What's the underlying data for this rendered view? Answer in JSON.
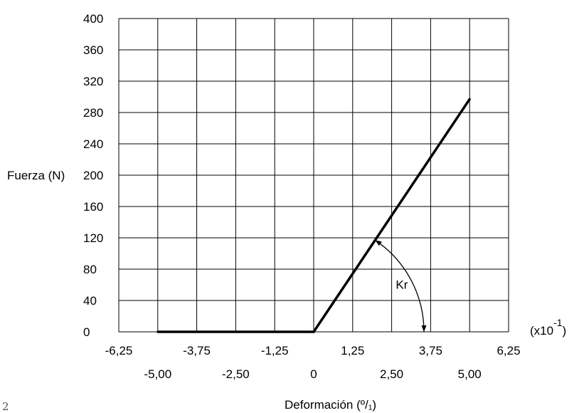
{
  "page_number": "2",
  "chart_data": {
    "type": "line",
    "xlabel": "Deformación (º/₁)",
    "ylabel": "Fuerza (N)",
    "x_multiplier_label": "(x10",
    "x_multiplier_exponent": "-1",
    "x_multiplier_close": ")",
    "annotation": "Kr",
    "xlim": [
      -6.25,
      6.25
    ],
    "ylim": [
      0,
      400
    ],
    "y_ticks": [
      0,
      40,
      80,
      120,
      160,
      200,
      240,
      280,
      320,
      360,
      400
    ],
    "y_tick_labels": [
      "0",
      "40",
      "80",
      "120",
      "160",
      "200",
      "240",
      "280",
      "320",
      "360",
      "400"
    ],
    "x_ticks_upper": [
      -6.25,
      -3.75,
      -1.25,
      1.25,
      3.75,
      6.25
    ],
    "x_tick_labels_upper": [
      "-6,25",
      "-3,75",
      "-1,25",
      "1,25",
      "3,75",
      "6,25"
    ],
    "x_ticks_lower": [
      -5.0,
      -2.5,
      0,
      2.5,
      5.0
    ],
    "x_tick_labels_lower": [
      "-5,00",
      "-2,50",
      "0",
      "2,50",
      "5,00"
    ],
    "grid": true,
    "series": [
      {
        "x": [
          -5.0,
          0,
          5.0
        ],
        "y": [
          0,
          0,
          297
        ]
      }
    ]
  }
}
